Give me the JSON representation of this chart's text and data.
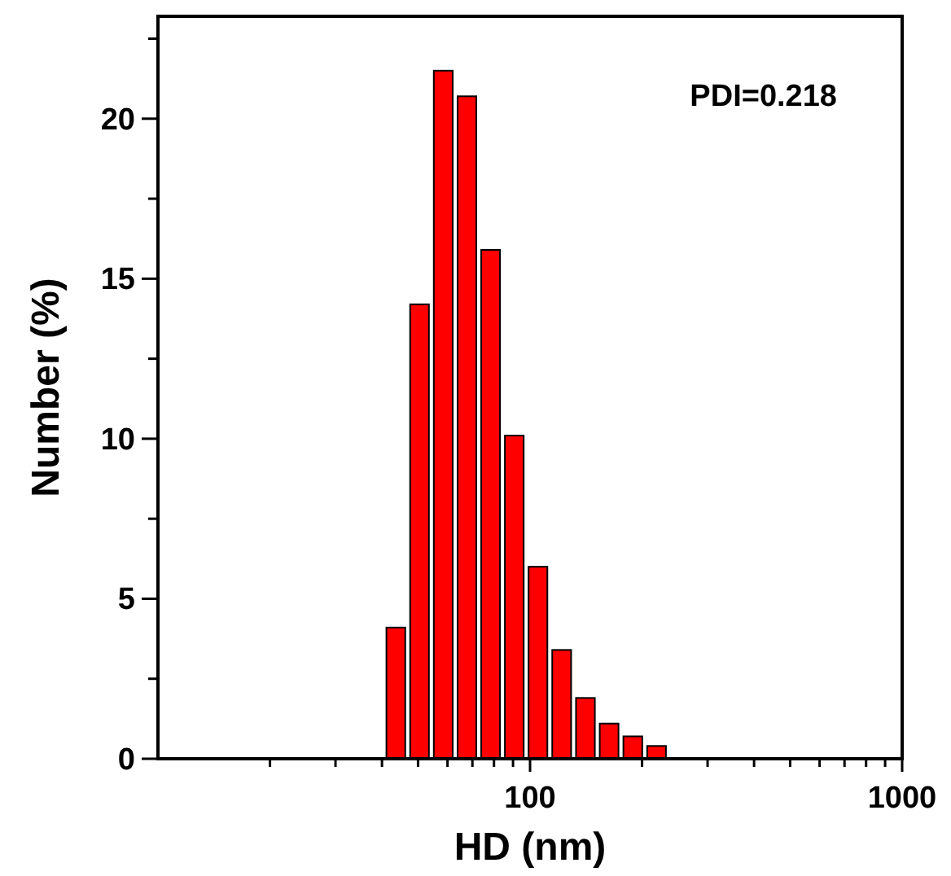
{
  "chart_data": {
    "type": "histogram",
    "xlabel": "HD (nm)",
    "ylabel": "Number (%)",
    "log": "x",
    "color": "#ff0000",
    "bins": [
      40.5,
      46.9,
      54.3,
      62.9,
      72.8,
      84.3,
      97.6,
      113,
      130.9,
      151.6,
      175.5,
      203.3,
      235.4
    ],
    "values": [
      4.1,
      14.2,
      21.5,
      20.7,
      15.9,
      10.1,
      6.0,
      3.4,
      1.9,
      1.1,
      0.7,
      0.4
    ],
    "xlim": [
      10,
      1000
    ],
    "xticks": [
      {
        "value": 20,
        "label": null
      },
      {
        "value": 30,
        "label": null
      },
      {
        "value": 40,
        "label": null
      },
      {
        "value": 50,
        "label": null
      },
      {
        "value": 60,
        "label": null
      },
      {
        "value": 70,
        "label": null
      },
      {
        "value": 80,
        "label": null
      },
      {
        "value": 90,
        "label": null
      },
      100,
      {
        "value": 200,
        "label": null
      },
      {
        "value": 300,
        "label": null
      },
      {
        "value": 400,
        "label": null
      },
      {
        "value": 500,
        "label": null
      },
      {
        "value": 600,
        "label": null
      },
      {
        "value": 700,
        "label": null
      },
      {
        "value": 800,
        "label": null
      },
      {
        "value": 900,
        "label": null
      },
      1000
    ],
    "ylim": [
      0,
      23.2
    ],
    "yticks": [
      0,
      {
        "value": 2.5,
        "label": null
      },
      5,
      {
        "value": 7.5,
        "label": null
      },
      10,
      {
        "value": 12.5,
        "label": null
      },
      15,
      {
        "value": 17.5,
        "label": null
      },
      20,
      {
        "value": 22.5,
        "label": null
      }
    ],
    "grid": false,
    "annotations": [
      "PDI=0.218"
    ]
  }
}
